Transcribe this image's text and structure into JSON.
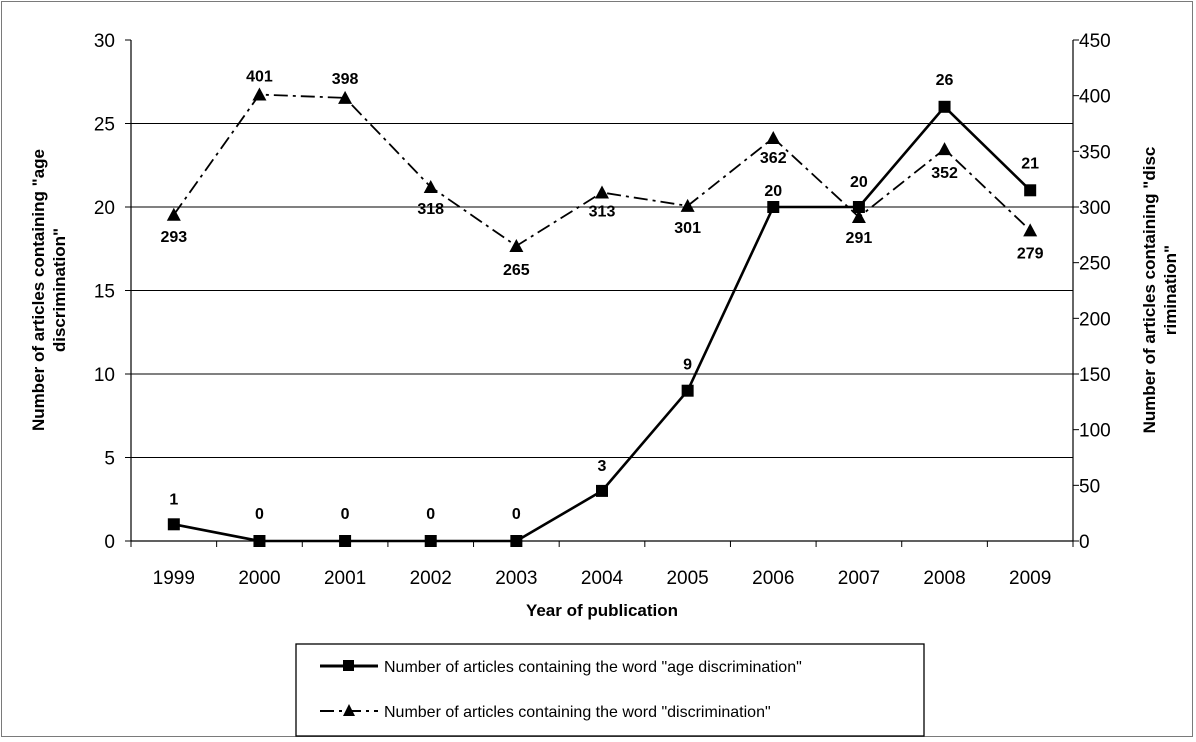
{
  "chart_data": {
    "type": "line",
    "categories": [
      "1999",
      "2000",
      "2001",
      "2002",
      "2003",
      "2004",
      "2005",
      "2006",
      "2007",
      "2008",
      "2009"
    ],
    "xlabel": "Year of publication",
    "ylabel_left": "Number of articles containing \"age discrimination\"",
    "ylabel_right": "Number of articles containing \"discrimination\"",
    "ylim_left": [
      0,
      30
    ],
    "ylim_right": [
      0,
      450
    ],
    "yticks_left": [
      "0",
      "5",
      "10",
      "15",
      "20",
      "25",
      "30"
    ],
    "yticks_right": [
      "0",
      "50",
      "100",
      "150",
      "200",
      "250",
      "300",
      "350",
      "400",
      "450"
    ],
    "grid": true,
    "legend_position": "bottom",
    "series": [
      {
        "name": "Number of articles containing the word \"age discrimination\"",
        "axis": "left",
        "style": "solid",
        "marker": "square",
        "values": [
          1,
          0,
          0,
          0,
          0,
          3,
          9,
          20,
          20,
          26,
          21
        ],
        "labels": [
          "1",
          "0",
          "0",
          "0",
          "0",
          "3",
          "9",
          "20",
          "20",
          "26",
          "21"
        ]
      },
      {
        "name": "Number of articles containing the word \"discrimination\"",
        "axis": "right",
        "style": "dash-dot",
        "marker": "triangle",
        "values": [
          293,
          401,
          398,
          318,
          265,
          313,
          301,
          362,
          291,
          352,
          279
        ],
        "labels": [
          "293",
          "401",
          "398",
          "318",
          "265",
          "313",
          "301",
          "362",
          "291",
          "352",
          "279"
        ]
      }
    ]
  }
}
